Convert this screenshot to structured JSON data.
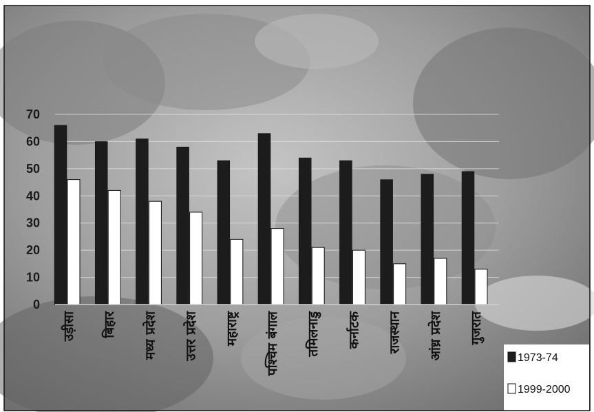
{
  "chart_data": {
    "type": "bar",
    "title": "",
    "xlabel": "",
    "ylabel": "",
    "ylim": [
      0,
      70
    ],
    "yticks": [
      0,
      10,
      20,
      30,
      40,
      50,
      60,
      70
    ],
    "categories": [
      "उड़ीसा",
      "बिहार",
      "मध्य प्रदेश",
      "उत्तर प्रदेश",
      "महाराष्ट्र",
      "पश्चिम बंगाल",
      "तमिलनाडु",
      "कर्नाटक",
      "राजस्थान",
      "आंध्र प्रदेश",
      "गुजरात"
    ],
    "series": [
      {
        "name": "1973-74",
        "color": "#1c1c1c",
        "values": [
          66,
          60,
          61,
          58,
          53,
          63,
          54,
          53,
          46,
          48,
          49
        ]
      },
      {
        "name": "1999-2000",
        "color": "#ffffff",
        "values": [
          46,
          42,
          38,
          34,
          24,
          28,
          21,
          20,
          15,
          17,
          13
        ]
      }
    ],
    "legend": {
      "placement": "bottom-right"
    },
    "grid": true,
    "colors": {
      "background_photo": "#9a9a9a",
      "frame": "#111111"
    }
  }
}
